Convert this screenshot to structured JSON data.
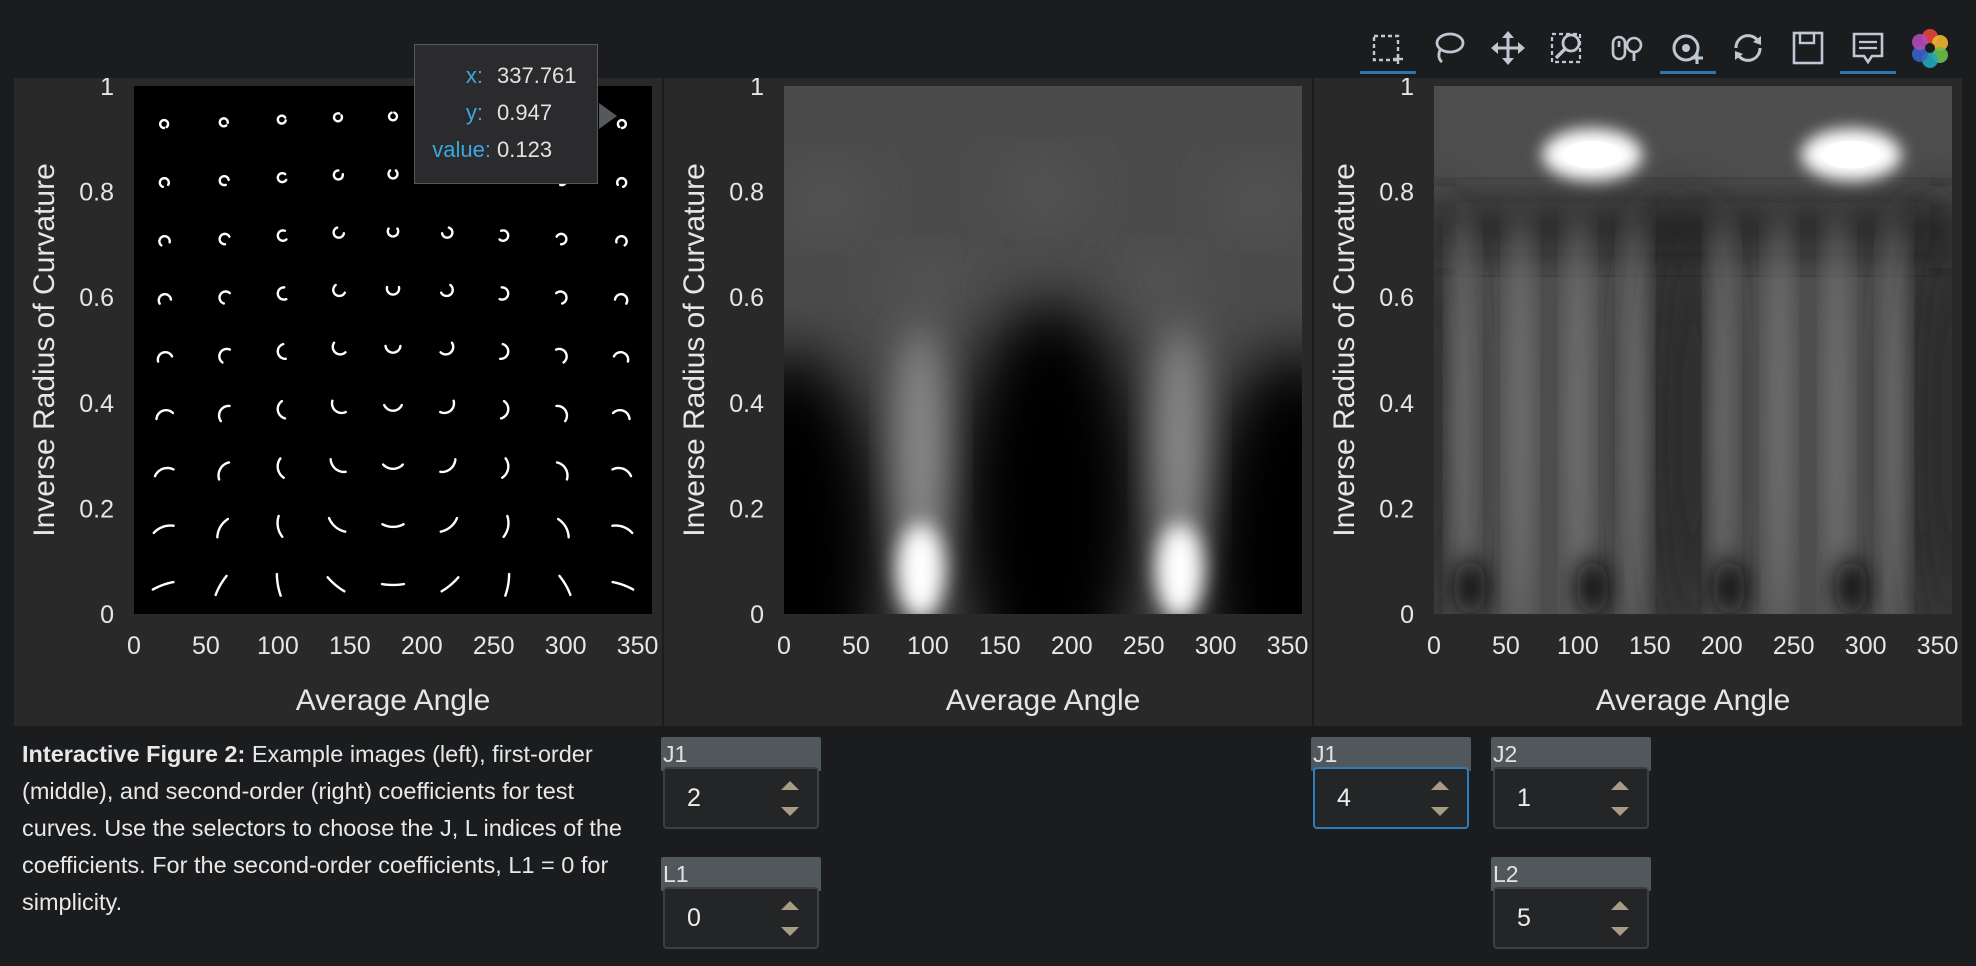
{
  "toolbar": {
    "tools": [
      {
        "name": "box-select",
        "active": true
      },
      {
        "name": "lasso-select",
        "active": false
      },
      {
        "name": "pan",
        "active": false
      },
      {
        "name": "box-zoom",
        "active": false
      },
      {
        "name": "wheel-zoom",
        "active": false
      },
      {
        "name": "tap",
        "active": true
      },
      {
        "name": "reset",
        "active": false
      },
      {
        "name": "save",
        "active": false
      },
      {
        "name": "hover",
        "active": true
      },
      {
        "name": "bokeh-logo",
        "active": false
      }
    ],
    "accent": "#2a7ab0"
  },
  "tooltip": {
    "x_label": "x:",
    "x_value": "337.761",
    "y_label": "y:",
    "y_value": "0.947",
    "value_label": "value:",
    "value_value": "0.123"
  },
  "caption": {
    "bold": "Interactive Figure 2:",
    "text": " Example images (left), first-order (middle), and second-order (right) coefficients for test curves. Use the selectors to choose the J, L indices of the coefficients. For the second-order coefficients, L1 = 0 for simplicity."
  },
  "widgets": {
    "first_order_j1": {
      "label": "J1",
      "value": "2"
    },
    "first_order_l1": {
      "label": "L1",
      "value": "0"
    },
    "second_order_j1": {
      "label": "J1",
      "value": "4"
    },
    "second_order_j2": {
      "label": "J2",
      "value": "1"
    },
    "second_order_l2": {
      "label": "L2",
      "value": "5"
    }
  },
  "chart_data": [
    {
      "type": "scatter",
      "title": "",
      "xlabel": "Average Angle",
      "ylabel": "Inverse Radius of Curvature",
      "xlim": [
        0,
        360
      ],
      "ylim": [
        0,
        1
      ],
      "xticks": [
        "0",
        "50",
        "100",
        "150",
        "200",
        "250",
        "300",
        "350"
      ],
      "yticks": [
        "0",
        "0.2",
        "0.4",
        "0.6",
        "0.8",
        "1"
      ],
      "background": "#000000",
      "glyph": "curve-segment",
      "angles": [
        20,
        60,
        100,
        140,
        180,
        220,
        260,
        300,
        340
      ],
      "curvatures": [
        0.055,
        0.165,
        0.275,
        0.385,
        0.495,
        0.605,
        0.715,
        0.825,
        0.935
      ]
    },
    {
      "type": "heatmap",
      "title": "",
      "xlabel": "Average Angle",
      "ylabel": "Inverse Radius of Curvature",
      "xlim": [
        0,
        360
      ],
      "ylim": [
        0,
        1
      ],
      "xticks": [
        "0",
        "50",
        "100",
        "150",
        "200",
        "250",
        "300",
        "350"
      ],
      "yticks": [
        "0",
        "0.2",
        "0.4",
        "0.6",
        "0.8",
        "1"
      ],
      "colormap": "grayscale",
      "bright_spots": [
        {
          "x": 95,
          "y": 0.08,
          "value": 1.0
        },
        {
          "x": 275,
          "y": 0.08,
          "value": 1.0
        }
      ],
      "dark_regions": [
        {
          "x": 5,
          "y": 0.1
        },
        {
          "x": 185,
          "y": 0.2
        },
        {
          "x": 355,
          "y": 0.1
        }
      ]
    },
    {
      "type": "heatmap",
      "title": "",
      "xlabel": "Average Angle",
      "ylabel": "Inverse Radius of Curvature",
      "xlim": [
        0,
        360
      ],
      "ylim": [
        0,
        1
      ],
      "xticks": [
        "0",
        "50",
        "100",
        "150",
        "200",
        "250",
        "300",
        "350"
      ],
      "yticks": [
        "0",
        "0.2",
        "0.4",
        "0.6",
        "0.8",
        "1"
      ],
      "colormap": "grayscale",
      "bright_spots": [
        {
          "x": 110,
          "y": 0.87,
          "value": 1.0
        },
        {
          "x": 290,
          "y": 0.87,
          "value": 1.0
        }
      ],
      "vertical_bands": [
        20,
        60,
        100,
        140,
        200,
        240,
        280,
        320
      ]
    }
  ]
}
